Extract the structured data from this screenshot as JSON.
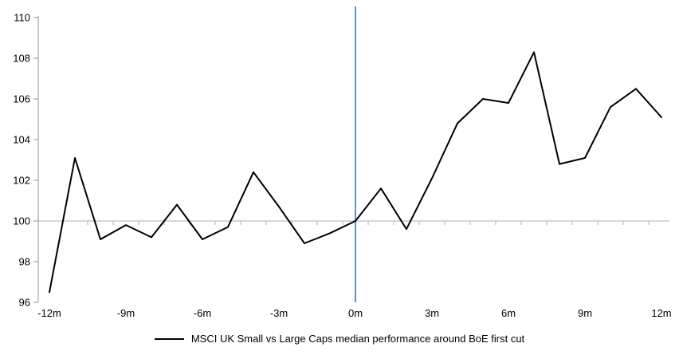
{
  "chart_data": {
    "type": "line",
    "title": "",
    "xlabel": "",
    "ylabel": "",
    "x": [
      -12,
      -11,
      -10,
      -9,
      -8,
      -7,
      -6,
      -5,
      -4,
      -3,
      -2,
      -1,
      0,
      1,
      2,
      3,
      4,
      5,
      6,
      7,
      8,
      9,
      10,
      11,
      12
    ],
    "series": [
      {
        "name": "MSCI UK Small vs Large Caps median performance around BoE first cut",
        "values": [
          96.5,
          103.1,
          99.1,
          99.8,
          99.2,
          100.8,
          99.1,
          99.7,
          102.4,
          100.7,
          98.9,
          99.4,
          100.0,
          101.6,
          99.6,
          102.1,
          104.8,
          106.0,
          105.8,
          108.3,
          102.8,
          103.1,
          105.6,
          106.5,
          105.1
        ]
      }
    ],
    "x_tick_labels": [
      "-12m",
      "-9m",
      "-6m",
      "-3m",
      "0m",
      "3m",
      "6m",
      "9m",
      "12m"
    ],
    "x_tick_positions": [
      -12,
      -9,
      -6,
      -3,
      0,
      3,
      6,
      9,
      12
    ],
    "y_ticks": [
      96,
      98,
      100,
      102,
      104,
      106,
      108,
      110
    ],
    "ylim": [
      96,
      110
    ],
    "xlim": [
      -12,
      12
    ],
    "baseline_value": 100,
    "event_line_at_x": 0,
    "legend_position": "bottom-center",
    "grid": "baseline-only",
    "colors": {
      "series_line": "#000000",
      "event_line": "#4e86c6",
      "axis": "#a6a6a6",
      "baseline": "#bfbfbf",
      "text": "#000000",
      "background": "#ffffff"
    }
  }
}
